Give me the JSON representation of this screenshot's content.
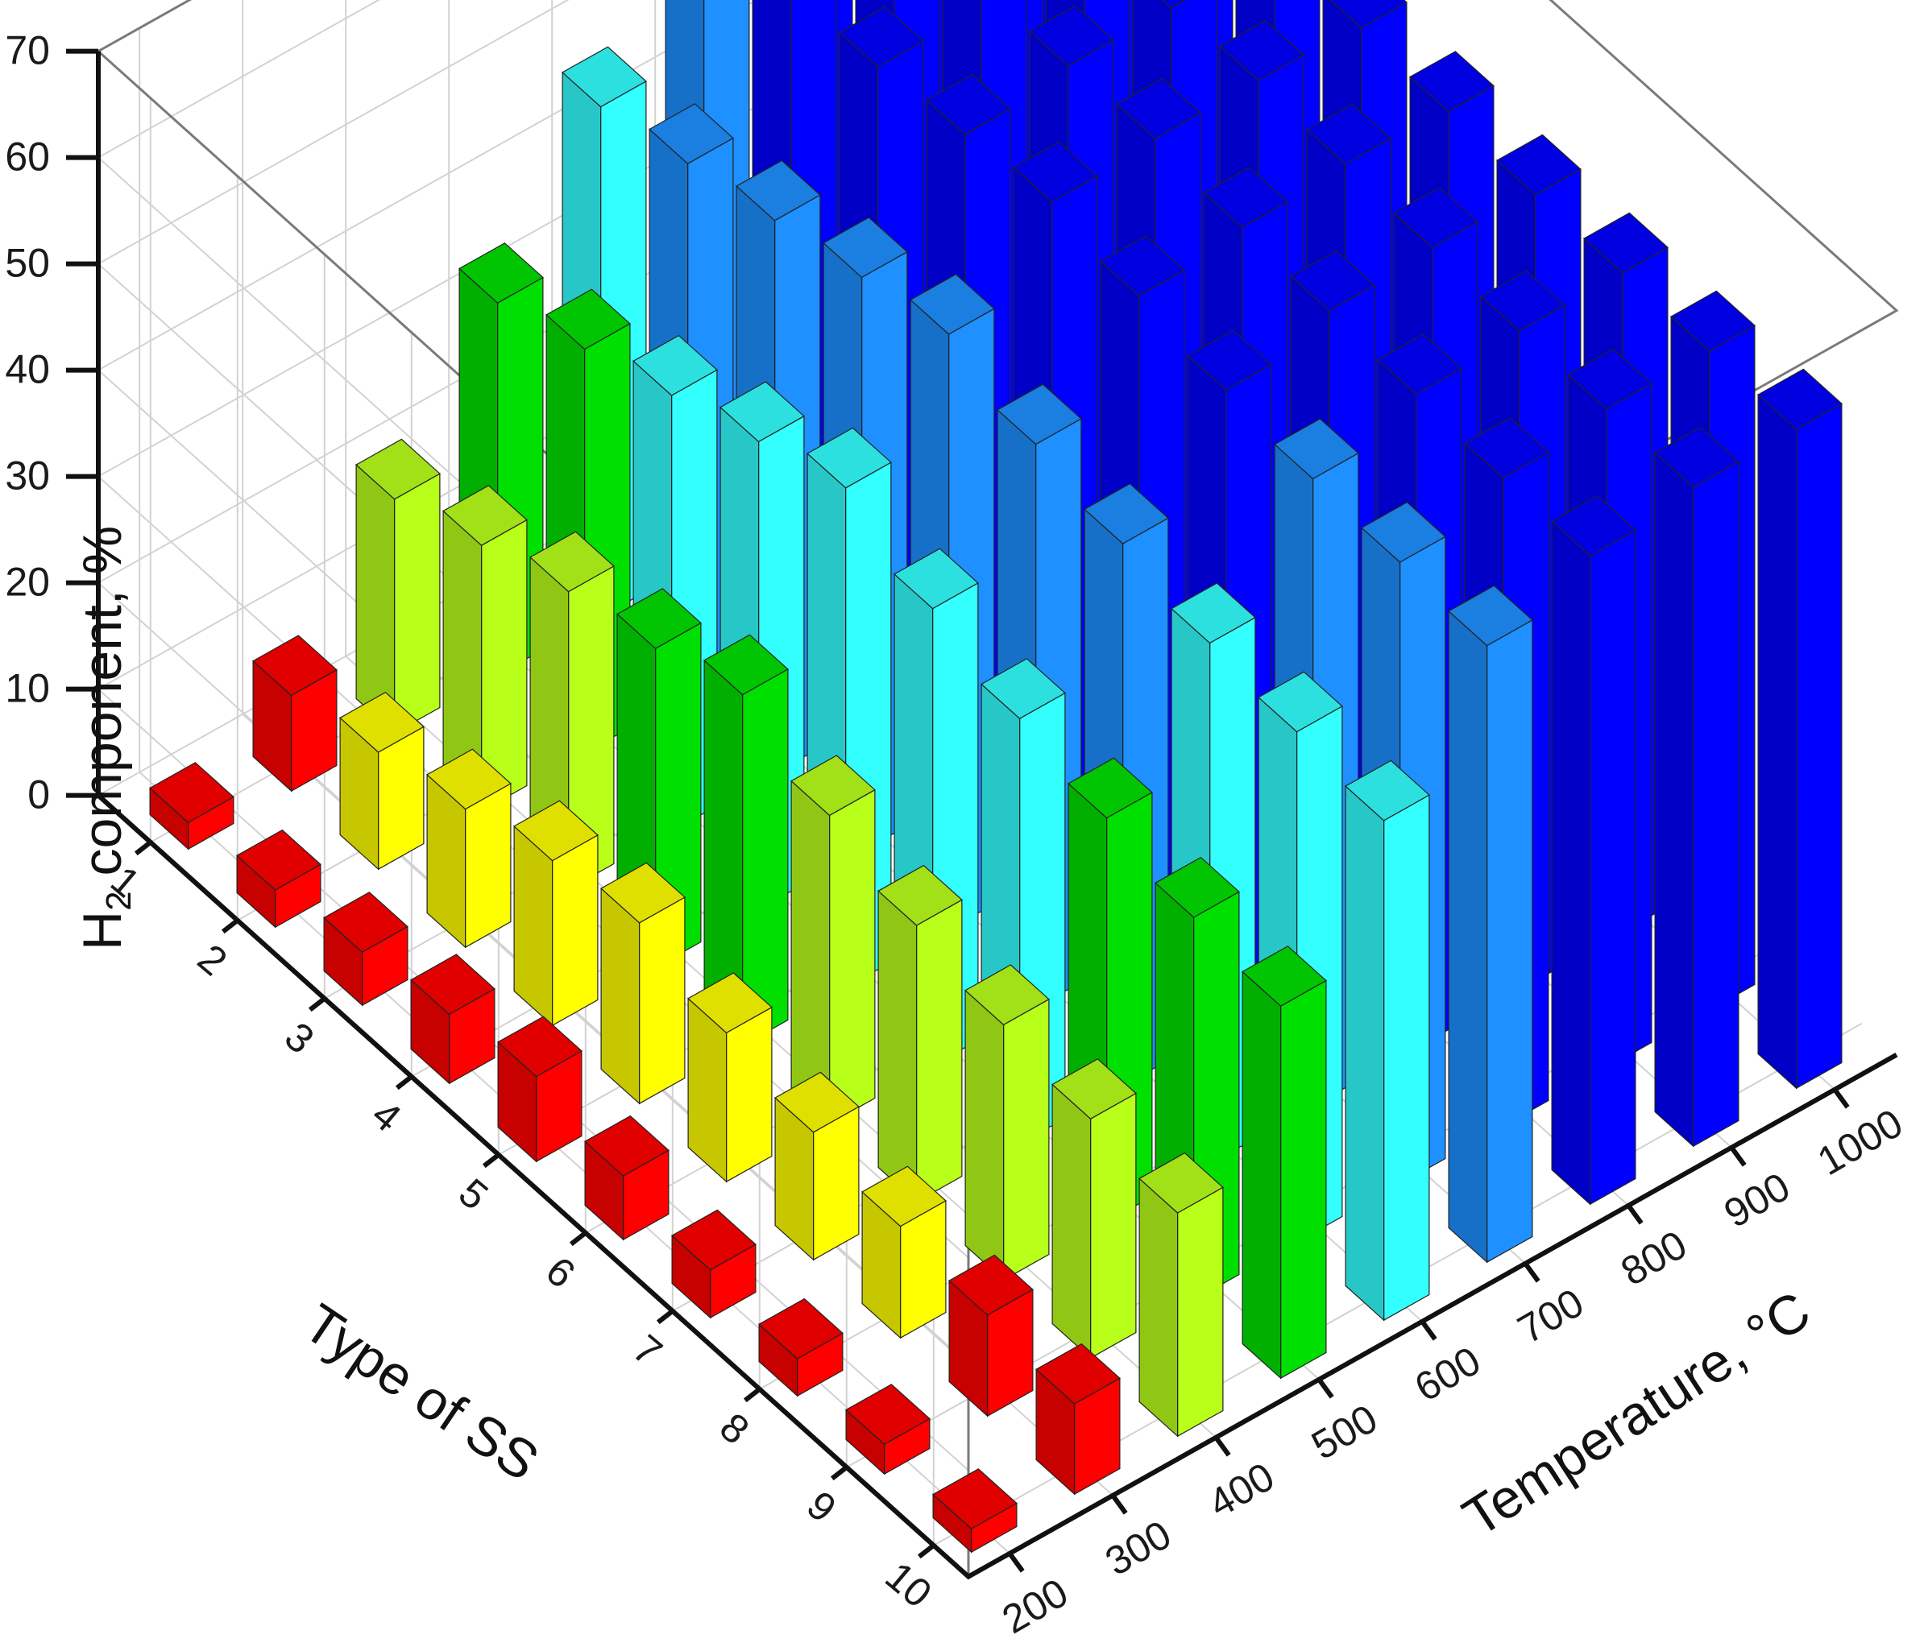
{
  "chart_data": {
    "type": "bar3d",
    "title": "",
    "zlabel_prefix": "H",
    "zlabel_sub": "2",
    "zlabel_suffix": " component, %",
    "xlabel": "Type of SS",
    "ylabel": "Temperature, °C",
    "x_ticks": [
      "1",
      "2",
      "3",
      "4",
      "5",
      "6",
      "7",
      "8",
      "9",
      "10"
    ],
    "y_ticks": [
      "200",
      "300",
      "400",
      "500",
      "600",
      "700",
      "800",
      "900",
      "1000"
    ],
    "z_ticks": [
      "0",
      "10",
      "20",
      "30",
      "40",
      "50",
      "60",
      "70"
    ],
    "zlim": [
      0,
      70
    ],
    "temperatures": [
      200,
      300,
      400,
      500,
      600,
      700,
      800,
      900,
      1000
    ],
    "types": [
      1,
      2,
      3,
      4,
      5,
      6,
      7,
      8,
      9,
      10
    ],
    "values_by_temperature": [
      [
        2.5,
        3.5,
        5.0,
        6.5,
        8.0,
        6.0,
        4.5,
        3.5,
        2.8,
        2.2
      ],
      [
        9.0,
        11.0,
        13.0,
        15.5,
        17.0,
        14.0,
        12.0,
        10.5,
        9.5,
        8.5
      ],
      [
        22.0,
        25.0,
        28.0,
        30.0,
        33.0,
        29.0,
        26.0,
        24.0,
        22.5,
        21.0
      ],
      [
        35.0,
        38.0,
        41.0,
        44.0,
        47.0,
        43.0,
        40.0,
        38.0,
        36.0,
        35.0
      ],
      [
        48.0,
        50.0,
        52.0,
        54.0,
        56.0,
        53.0,
        51.0,
        49.0,
        48.0,
        47.0
      ],
      [
        58.0,
        60.0,
        61.0,
        62.0,
        63.0,
        61.5,
        60.0,
        59.0,
        58.5,
        58.0
      ],
      [
        61.0,
        62.0,
        62.5,
        63.0,
        63.5,
        62.5,
        62.0,
        61.5,
        61.0,
        61.0
      ],
      [
        62.0,
        62.5,
        63.0,
        63.0,
        63.5,
        63.0,
        62.5,
        62.0,
        62.0,
        62.0
      ],
      [
        62.0,
        62.0,
        62.5,
        62.5,
        63.0,
        62.5,
        62.0,
        62.0,
        62.0,
        62.0
      ]
    ],
    "color_levels": [
      {
        "min": 0,
        "max": 10,
        "color": "#ff0000"
      },
      {
        "min": 10,
        "max": 20,
        "color": "#ffff00"
      },
      {
        "min": 20,
        "max": 30,
        "color": "#b8ff1a"
      },
      {
        "min": 30,
        "max": 40,
        "color": "#00e000"
      },
      {
        "min": 40,
        "max": 50,
        "color": "#33ffff"
      },
      {
        "min": 50,
        "max": 60,
        "color": "#1e90ff"
      },
      {
        "min": 60,
        "max": 70,
        "color": "#0000ff"
      }
    ],
    "grid": true,
    "legend": "none"
  }
}
